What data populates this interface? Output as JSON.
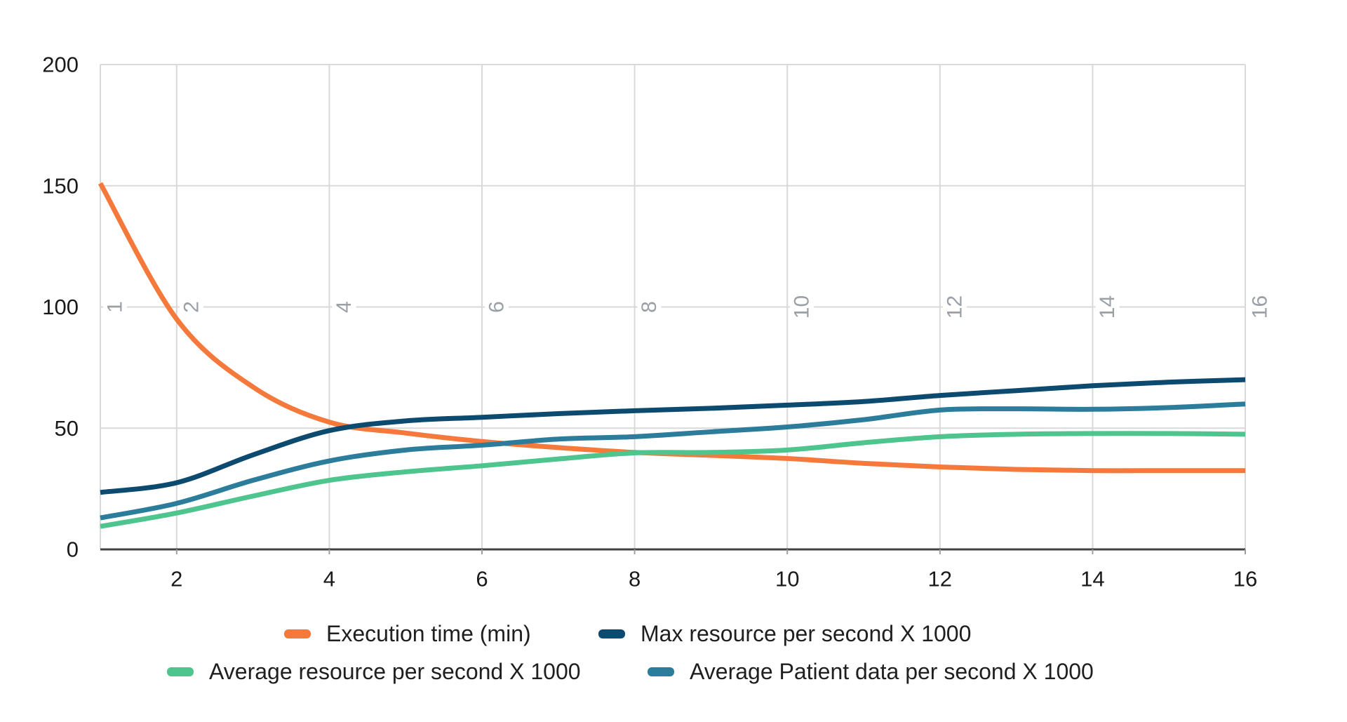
{
  "chart_data": {
    "type": "line",
    "title": "",
    "x": [
      1,
      2,
      3,
      4,
      5,
      6,
      7,
      8,
      9,
      10,
      11,
      12,
      13,
      14,
      15,
      16
    ],
    "x_axis": {
      "min": 1,
      "max": 16,
      "gridline_values": [
        1,
        2,
        4,
        6,
        8,
        10,
        12,
        14,
        16
      ],
      "tick_values": [
        2,
        4,
        6,
        8,
        10,
        12,
        14,
        16
      ],
      "tick_labels": [
        "2",
        "4",
        "6",
        "8",
        "10",
        "12",
        "14",
        "16"
      ]
    },
    "y_axis": {
      "min": 0,
      "max": 200,
      "tick_values": [
        0,
        50,
        100,
        150,
        200
      ],
      "tick_labels": [
        "0",
        "50",
        "100",
        "150",
        "200"
      ]
    },
    "inner_rotated_labels": {
      "values": [
        1,
        2,
        4,
        6,
        8,
        10,
        12,
        14,
        16
      ],
      "texts": [
        "1",
        "2",
        "4",
        "6",
        "8",
        "10",
        "12",
        "14",
        "16"
      ],
      "anchored_at_y_value": 100
    },
    "series": [
      {
        "name": "Execution time (min)",
        "color": "#f5793b",
        "values": [
          151,
          95,
          67,
          52.5,
          48,
          44.5,
          42,
          40,
          38.8,
          37.5,
          35.5,
          34,
          33,
          32.5,
          32.5,
          32.5
        ]
      },
      {
        "name": "Max resource per second X 1000",
        "color": "#0d4a6f",
        "values": [
          23.5,
          27.5,
          39,
          49,
          53,
          54.5,
          56,
          57.2,
          58.2,
          59.5,
          61,
          63.5,
          65.5,
          67.5,
          69,
          70
        ]
      },
      {
        "name": "Average resource per second X 1000",
        "color": "#4ec48e",
        "values": [
          9.5,
          15,
          22,
          28.5,
          32,
          34.5,
          37.3,
          39.8,
          40,
          41,
          44,
          46.5,
          47.5,
          47.8,
          47.8,
          47.5
        ]
      },
      {
        "name": "Average Patient data per second X 1000",
        "color": "#2b7d9b",
        "values": [
          13,
          19,
          28.5,
          36.5,
          41,
          43,
          45.5,
          46.5,
          48.5,
          50.5,
          53.5,
          57.5,
          58,
          57.8,
          58.5,
          60
        ]
      }
    ],
    "grid_on": true,
    "legend_position": "bottom",
    "colors": {
      "grid": "#d9d9d9",
      "axis": "#424242",
      "tick_label": "#1a1a1a",
      "inner_label": "#9aa0a6",
      "background": "#ffffff"
    }
  },
  "legend": {
    "rows": [
      {
        "items": [
          {
            "label": "Execution time (min)",
            "series": 0
          },
          {
            "label": "Max resource per second X 1000",
            "series": 1
          }
        ]
      },
      {
        "items": [
          {
            "label": "Average resource per second X 1000",
            "series": 2
          },
          {
            "label": "Average Patient data per second X 1000",
            "series": 3
          }
        ]
      }
    ]
  }
}
